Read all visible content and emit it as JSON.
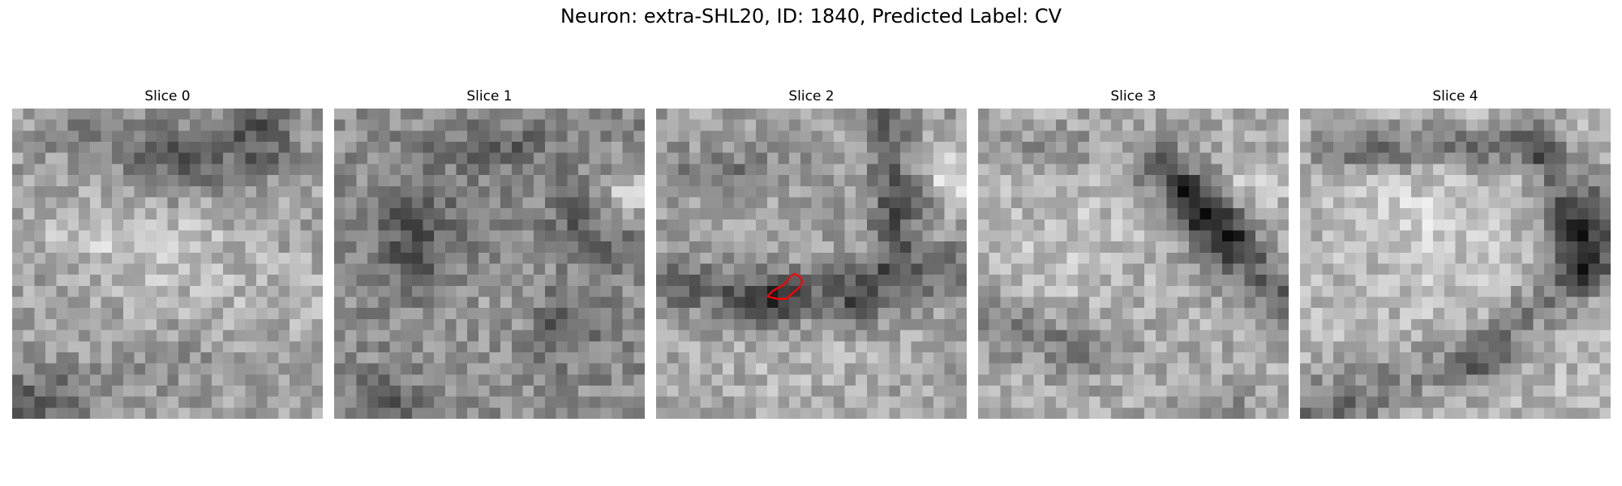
{
  "figure": {
    "title": "Neuron: extra-SHL20, ID: 1840, Predicted Label: CV"
  },
  "slices": [
    {
      "title": "Slice 0"
    },
    {
      "title": "Slice 1"
    },
    {
      "title": "Slice 2"
    },
    {
      "title": "Slice 3"
    },
    {
      "title": "Slice 4"
    }
  ],
  "colormap": "gray",
  "contour_color": "#ff0000"
}
